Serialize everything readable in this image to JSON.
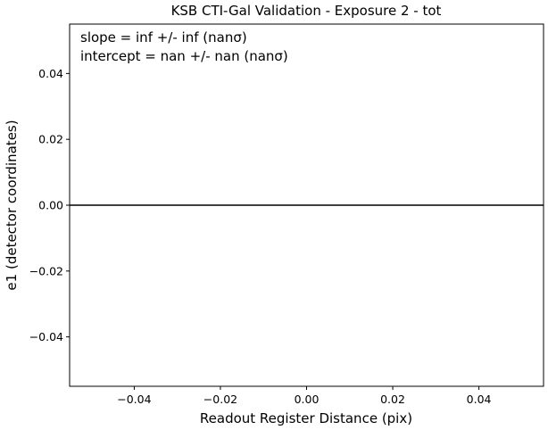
{
  "chart_data": {
    "type": "line",
    "title": "KSB CTI-Gal Validation - Exposure 2 - tot",
    "xlabel": "Readout Register Distance (pix)",
    "ylabel": "e1 (detector coordinates)",
    "xlim": [
      -0.055,
      0.055
    ],
    "ylim": [
      -0.055,
      0.055
    ],
    "xticks": [
      -0.04,
      -0.02,
      0.0,
      0.02,
      0.04
    ],
    "xtick_labels": [
      "−0.04",
      "−0.02",
      "0.00",
      "0.02",
      "0.04"
    ],
    "yticks": [
      0.04,
      0.02,
      0.0,
      -0.02,
      -0.04
    ],
    "ytick_labels": [
      "0.04",
      "0.02",
      "0.00",
      "−0.02",
      "−0.04"
    ],
    "grid": false,
    "series": [],
    "reference_line": {
      "y": 0.0,
      "color": "#000000"
    },
    "annotations": [
      "slope = inf +/- inf (nanσ)",
      "intercept = nan +/- nan (nanσ)"
    ]
  }
}
